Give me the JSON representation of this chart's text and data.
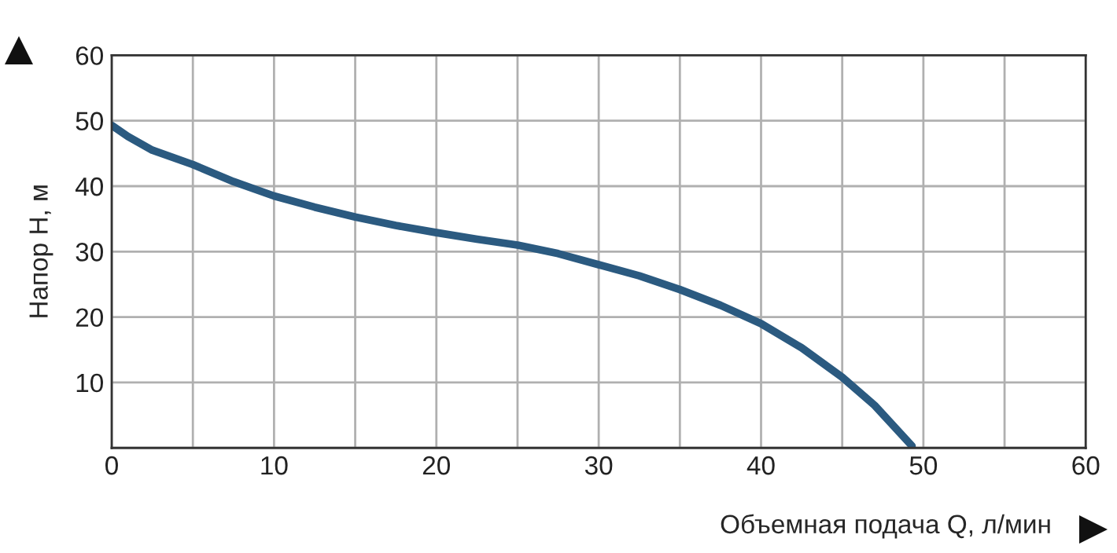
{
  "chart_data": {
    "type": "line",
    "xlabel": "Объемная подача Q, л/мин",
    "ylabel": "Напор H, м",
    "x": [
      0,
      1,
      2.5,
      5,
      7.5,
      10,
      12.5,
      15,
      17.5,
      20,
      22.5,
      25,
      27.5,
      30,
      32.5,
      35,
      37.5,
      40,
      42.5,
      45,
      47,
      49.3
    ],
    "series": [
      {
        "color": "#2b5a80",
        "values": [
          49.3,
          47.6,
          45.5,
          43.3,
          40.7,
          38.5,
          36.8,
          35.3,
          34,
          32.9,
          31.9,
          31,
          29.7,
          28,
          26.3,
          24.2,
          21.8,
          19,
          15.3,
          10.8,
          6.5,
          0.3
        ]
      }
    ],
    "xlim": [
      0,
      60
    ],
    "ylim": [
      0,
      60
    ],
    "xticks": [
      0,
      {
        "value": 5,
        "label": null
      },
      10,
      {
        "value": 15,
        "label": null
      },
      20,
      {
        "value": 25,
        "label": null
      },
      30,
      {
        "value": 35,
        "label": null
      },
      40,
      {
        "value": 45,
        "label": null
      },
      50,
      {
        "value": 55,
        "label": null
      },
      60
    ],
    "yticks": [
      {
        "value": 0,
        "label": null
      },
      10,
      20,
      30,
      40,
      50,
      60
    ],
    "grid": true,
    "marker": "none",
    "line_style": "solid"
  }
}
